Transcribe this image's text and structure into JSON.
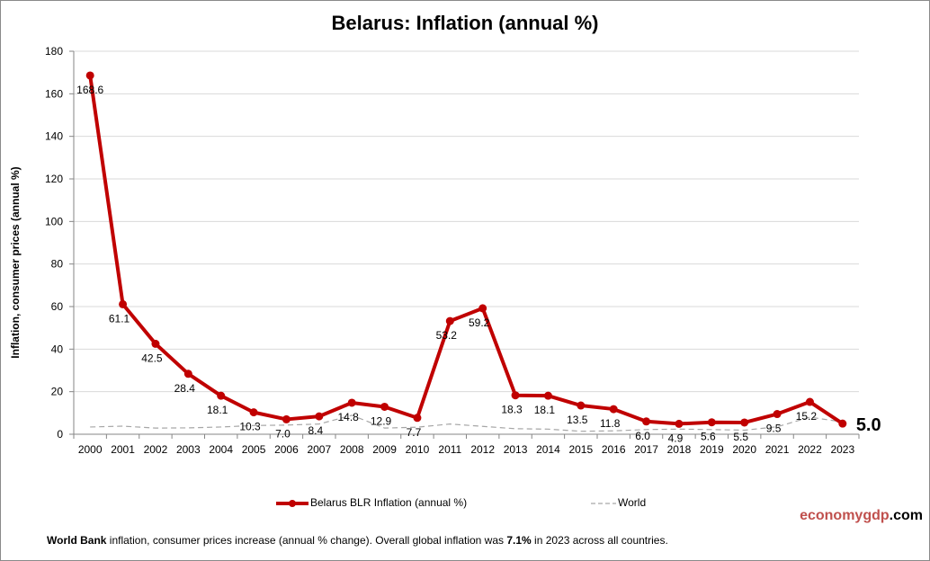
{
  "chart_data": {
    "type": "line",
    "title": "Belarus:  Inflation (annual %)",
    "ylabel": "Inflation, consumer prices (annual %)",
    "xlabel": "",
    "ylim": [
      0,
      180
    ],
    "yticks": [
      0,
      20,
      40,
      60,
      80,
      100,
      120,
      140,
      160,
      180
    ],
    "grid": true,
    "legend_placement": "bottom",
    "categories": [
      "2000",
      "2001",
      "2002",
      "2003",
      "2004",
      "2005",
      "2006",
      "2007",
      "2008",
      "2009",
      "2010",
      "2011",
      "2012",
      "2013",
      "2014",
      "2015",
      "2016",
      "2017",
      "2018",
      "2019",
      "2020",
      "2021",
      "2022",
      "2023"
    ],
    "series": [
      {
        "name": "Belarus BLR Inflation (annual %)",
        "color": "#c00000",
        "values": [
          168.6,
          61.1,
          42.5,
          28.4,
          18.1,
          10.3,
          7.0,
          8.4,
          14.8,
          12.9,
          7.7,
          53.2,
          59.2,
          18.3,
          18.1,
          13.5,
          11.8,
          6.0,
          4.9,
          5.6,
          5.5,
          9.5,
          15.2,
          5.0
        ],
        "labels": [
          "168.6",
          "61.1",
          "42.5",
          "28.4",
          "18.1",
          "10.3",
          "7.0",
          "8.4",
          "14.8",
          "12.9",
          "7.7",
          "53.2",
          "59.2",
          "18.3",
          "18.1",
          "13.5",
          "11.8",
          "6.0",
          "4.9",
          "5.6",
          "5.5",
          "9.5",
          "15.2",
          "5.0"
        ]
      },
      {
        "name": "World",
        "color": "#a6a6a6",
        "dashed": true,
        "values": [
          3.4,
          3.8,
          2.9,
          3.0,
          3.4,
          4.1,
          4.3,
          4.8,
          8.9,
          2.9,
          3.3,
          4.8,
          3.7,
          2.6,
          2.4,
          1.4,
          1.6,
          2.2,
          2.4,
          2.2,
          1.9,
          3.5,
          8.0,
          5.8
        ]
      }
    ]
  },
  "brand": {
    "part1": "economy",
    "part2": "gdp",
    "part3": ".com"
  },
  "footer": {
    "source_bold": "World Bank",
    "text1": " inflation, consumer prices increase (annual  % change).   Overall  global  inflation was ",
    "global_value": "7.1%",
    "text2": " in 2023 across all countries."
  }
}
